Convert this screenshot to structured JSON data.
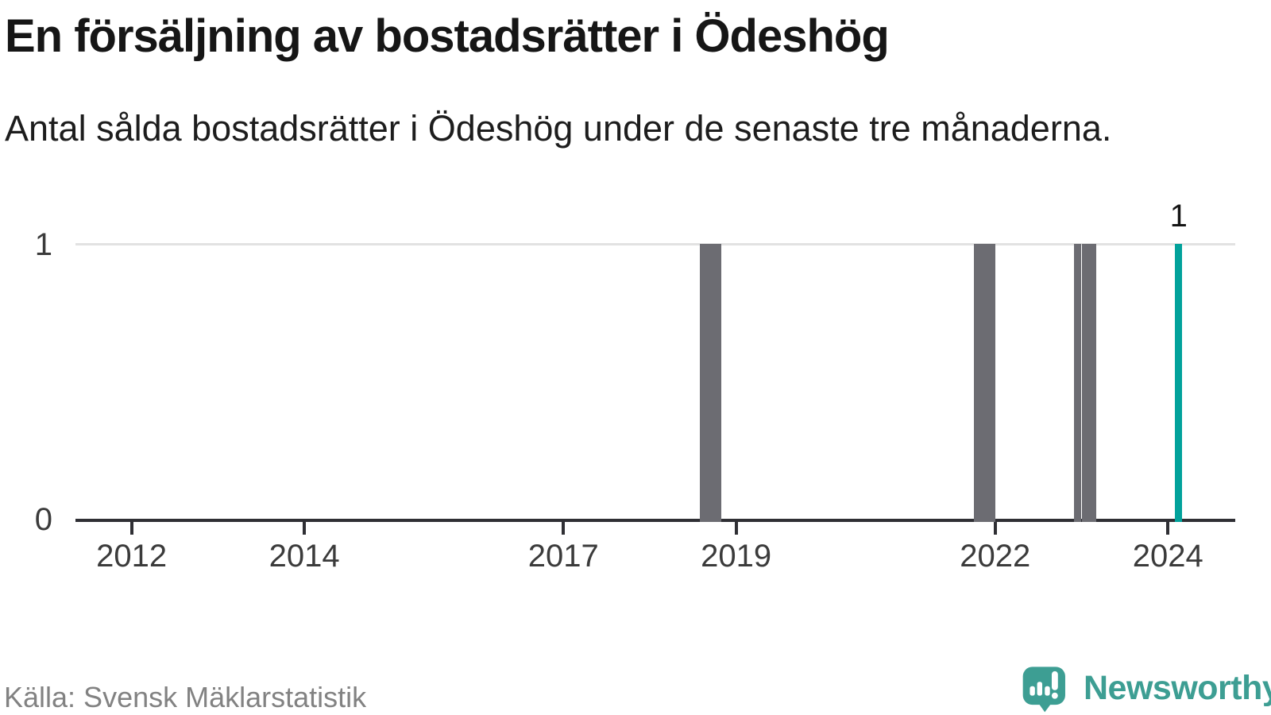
{
  "header": {
    "title": "En försäljning av bostadsrätter i Ödeshög",
    "subtitle": "Antal sålda bostadsrätter i Ödeshög under de senaste tre månaderna."
  },
  "chart_data": {
    "type": "bar",
    "title": "En försäljning av bostadsrätter i Ödeshög",
    "subtitle": "Antal sålda bostadsrätter i Ödeshög under de senaste tre månaderna.",
    "xlabel": "",
    "ylabel": "",
    "x_domain": [
      2011.35,
      2024.78
    ],
    "x_ticks": [
      "2012",
      "2014",
      "2017",
      "2019",
      "2022",
      "2024"
    ],
    "ylim": [
      0,
      1
    ],
    "y_ticks": [
      {
        "label": "1",
        "value": 1
      },
      {
        "label": "0",
        "value": 0
      }
    ],
    "grid": "horizontal gridline at y=1 only, dark baseline at y=0",
    "legend": "none",
    "points": [
      {
        "month": "2018-08",
        "value": 1,
        "highlight": false
      },
      {
        "month": "2018-09",
        "value": 1,
        "highlight": false
      },
      {
        "month": "2018-10",
        "value": 1,
        "highlight": false
      },
      {
        "month": "2021-10",
        "value": 1,
        "highlight": false
      },
      {
        "month": "2021-11",
        "value": 1,
        "highlight": false
      },
      {
        "month": "2021-12",
        "value": 1,
        "highlight": false
      },
      {
        "month": "2022-12",
        "value": 1,
        "highlight": false
      },
      {
        "month": "2023-01",
        "value": 1,
        "highlight": false
      },
      {
        "month": "2023-02",
        "value": 1,
        "highlight": false
      },
      {
        "month": "2024-02",
        "value": 1,
        "highlight": true,
        "label": "1"
      }
    ],
    "colors": {
      "bar": "#6c6c72",
      "highlight": "#02a29b"
    }
  },
  "footer": {
    "source": "Källa: Svensk Mäklarstatistik",
    "brand": "Newsworthy",
    "brand_color": "#3d9e93"
  }
}
